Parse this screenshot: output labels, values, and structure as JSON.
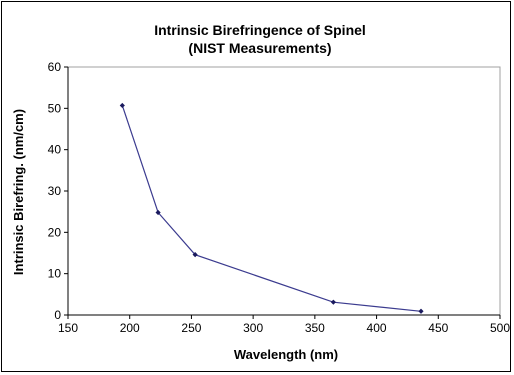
{
  "chart_data": {
    "type": "line",
    "title": "Intrinsic Birefringence of Spinel",
    "subtitle": "(NIST Measurements)",
    "xlabel": "Wavelength (nm)",
    "ylabel": "Intrinsic Birefring. (nm/cm)",
    "xlim": [
      150,
      500
    ],
    "ylim": [
      0,
      60
    ],
    "xticks": [
      150,
      200,
      250,
      300,
      350,
      400,
      450,
      500
    ],
    "yticks": [
      0,
      10,
      20,
      30,
      40,
      50,
      60
    ],
    "grid": false,
    "legend": "none",
    "series": [
      {
        "color": "#3b3b8f",
        "points": [
          {
            "x": 194,
            "y": 50.7
          },
          {
            "x": 223,
            "y": 24.8
          },
          {
            "x": 253,
            "y": 14.6
          },
          {
            "x": 365,
            "y": 3.1
          },
          {
            "x": 436,
            "y": 0.9
          }
        ]
      }
    ]
  }
}
